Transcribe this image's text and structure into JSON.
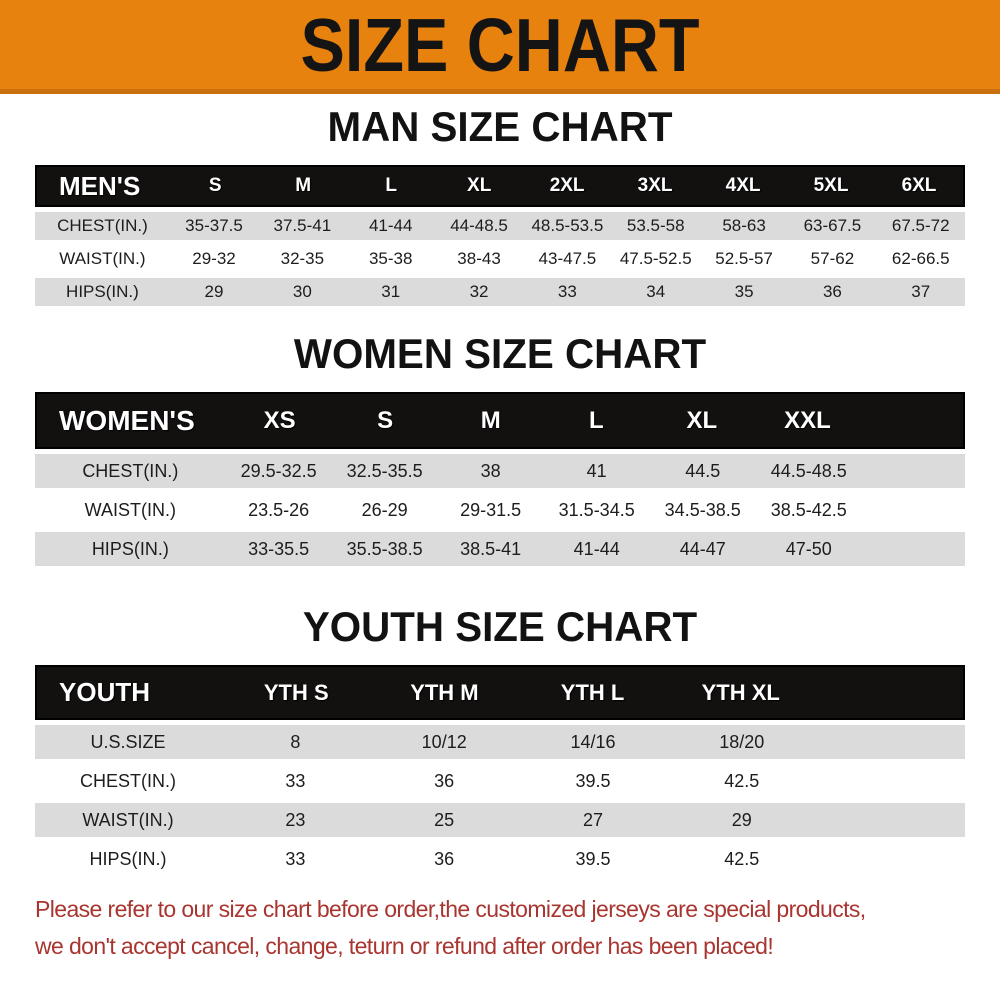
{
  "banner": {
    "title": "SIZE CHART"
  },
  "colors": {
    "banner_orange": "#E8820F",
    "banner_edge": "#C9700C",
    "header_black": "#131110",
    "row_gray": "#DBDBDB",
    "note_red": "#A93530"
  },
  "sections": [
    {
      "key": "men",
      "title": "MAN SIZE CHART",
      "table": {
        "group_label": "MEN'S",
        "sizes": [
          "S",
          "M",
          "L",
          "XL",
          "2XL",
          "3XL",
          "4XL",
          "5XL",
          "6XL"
        ],
        "rows": [
          {
            "label": "CHEST(IN.)",
            "values": [
              "35-37.5",
              "37.5-41",
              "41-44",
              "44-48.5",
              "48.5-53.5",
              "53.5-58",
              "58-63",
              "63-67.5",
              "67.5-72"
            ]
          },
          {
            "label": "WAIST(IN.)",
            "values": [
              "29-32",
              "32-35",
              "35-38",
              "38-43",
              "43-47.5",
              "47.5-52.5",
              "52.5-57",
              "57-62",
              "62-66.5"
            ]
          },
          {
            "label": "HIPS(IN.)",
            "values": [
              "29",
              "30",
              "31",
              "32",
              "33",
              "34",
              "35",
              "36",
              "37"
            ]
          }
        ]
      }
    },
    {
      "key": "women",
      "title": "WOMEN SIZE CHART",
      "table": {
        "group_label": "WOMEN'S",
        "sizes": [
          "XS",
          "S",
          "M",
          "L",
          "XL",
          "XXL"
        ],
        "rows": [
          {
            "label": "CHEST(IN.)",
            "values": [
              "29.5-32.5",
              "32.5-35.5",
              "38",
              "41",
              "44.5",
              "44.5-48.5"
            ]
          },
          {
            "label": "WAIST(IN.)",
            "values": [
              "23.5-26",
              "26-29",
              "29-31.5",
              "31.5-34.5",
              "34.5-38.5",
              "38.5-42.5"
            ]
          },
          {
            "label": "HIPS(IN.)",
            "values": [
              "33-35.5",
              "35.5-38.5",
              "38.5-41",
              "41-44",
              "44-47",
              "47-50"
            ]
          }
        ]
      }
    },
    {
      "key": "youth",
      "title": "YOUTH SIZE CHART",
      "table": {
        "group_label": "YOUTH",
        "sizes": [
          "YTH S",
          "YTH M",
          "YTH L",
          "YTH XL"
        ],
        "rows": [
          {
            "label": "U.S.SIZE",
            "values": [
              "8",
              "10/12",
              "14/16",
              "18/20"
            ]
          },
          {
            "label": "CHEST(IN.)",
            "values": [
              "33",
              "36",
              "39.5",
              "42.5"
            ]
          },
          {
            "label": "WAIST(IN.)",
            "values": [
              "23",
              "25",
              "27",
              "29"
            ]
          },
          {
            "label": "HIPS(IN.)",
            "values": [
              "33",
              "36",
              "39.5",
              "42.5"
            ]
          }
        ]
      }
    }
  ],
  "footer": {
    "line1": "Please refer to our size chart before order,the customized jerseys are special products,",
    "line2": "we don't accept cancel, change, teturn or refund after order has been placed!"
  }
}
